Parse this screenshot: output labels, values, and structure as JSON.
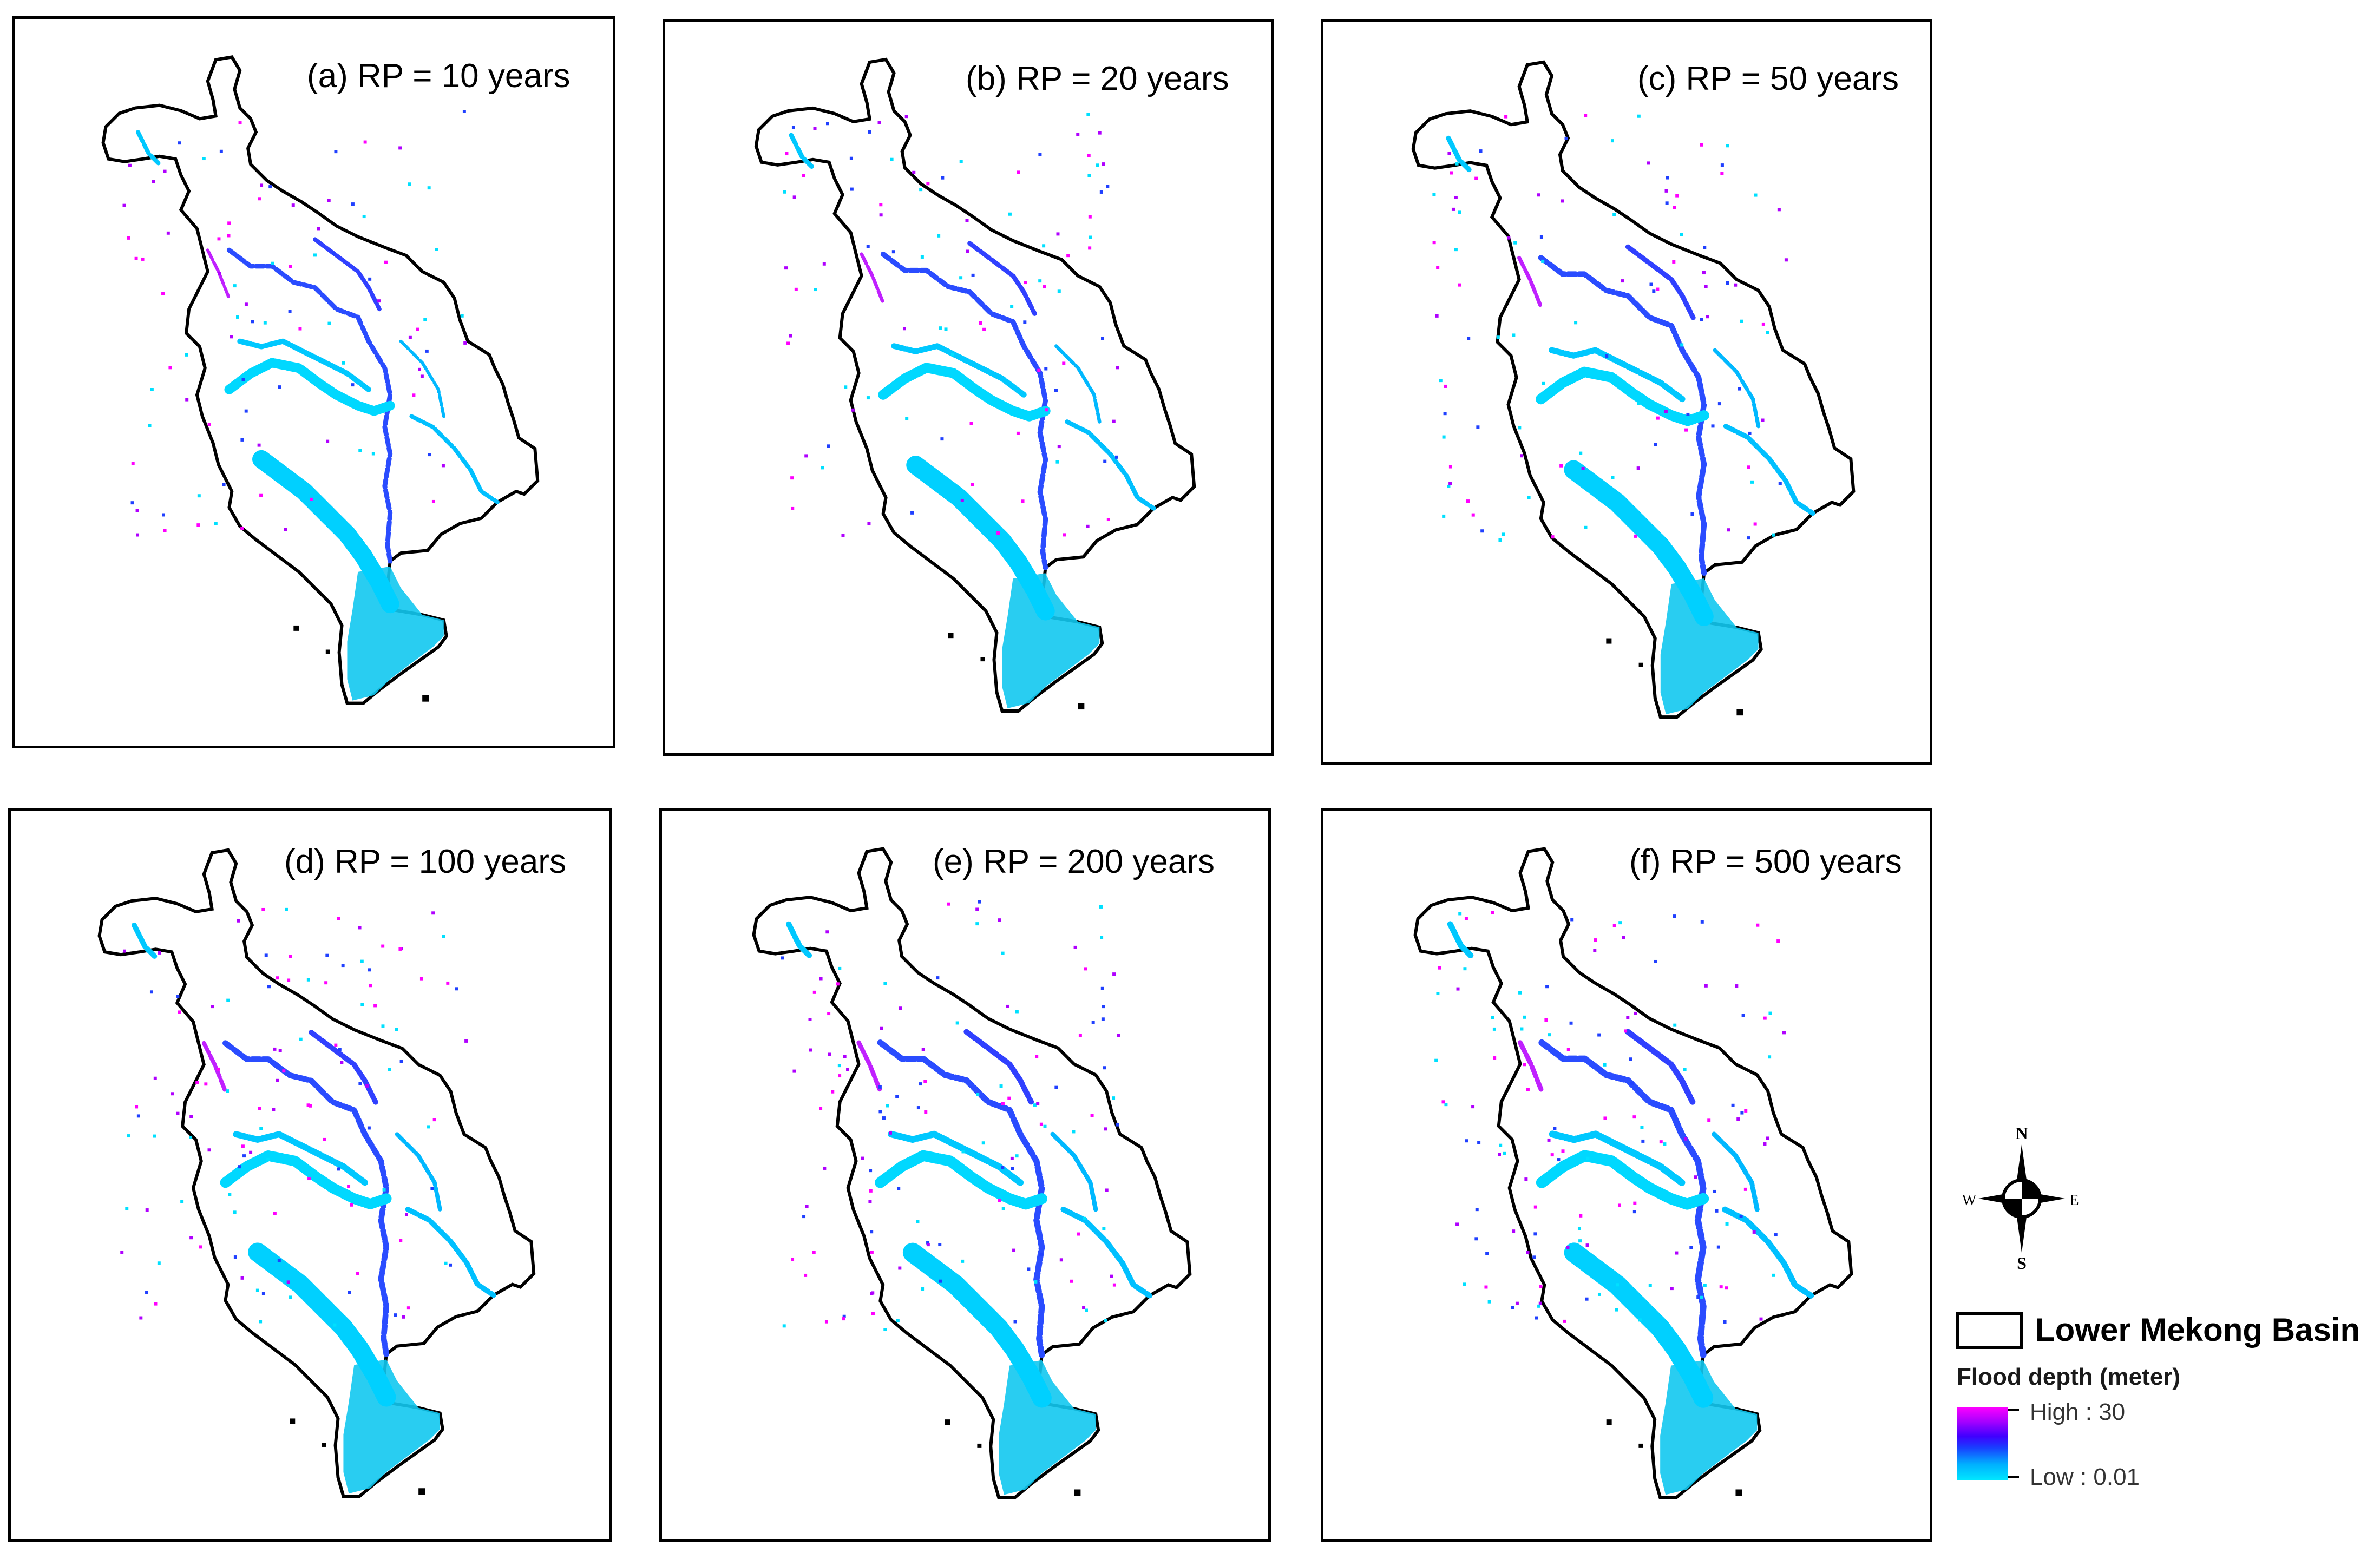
{
  "panels": [
    {
      "label": "(a) RP = 10 years"
    },
    {
      "label": "(b) RP = 20 years"
    },
    {
      "label": "(c) RP = 50 years"
    },
    {
      "label": "(d) RP = 100 years"
    },
    {
      "label": "(e) RP = 200 years"
    },
    {
      "label": "(f) RP = 500 years"
    }
  ],
  "legend": {
    "basin_label": "Lower Mekong Basin",
    "depth_title": "Flood depth (meter)",
    "high_label": "High : 30",
    "low_label": "Low : 0.01"
  },
  "compass": {
    "n": "N",
    "s": "S",
    "e": "E",
    "w": "W"
  },
  "colors": {
    "basin_outline": "#000000",
    "high": "#ff00ff",
    "mid": "#2040ff",
    "low": "#00e0ff"
  }
}
